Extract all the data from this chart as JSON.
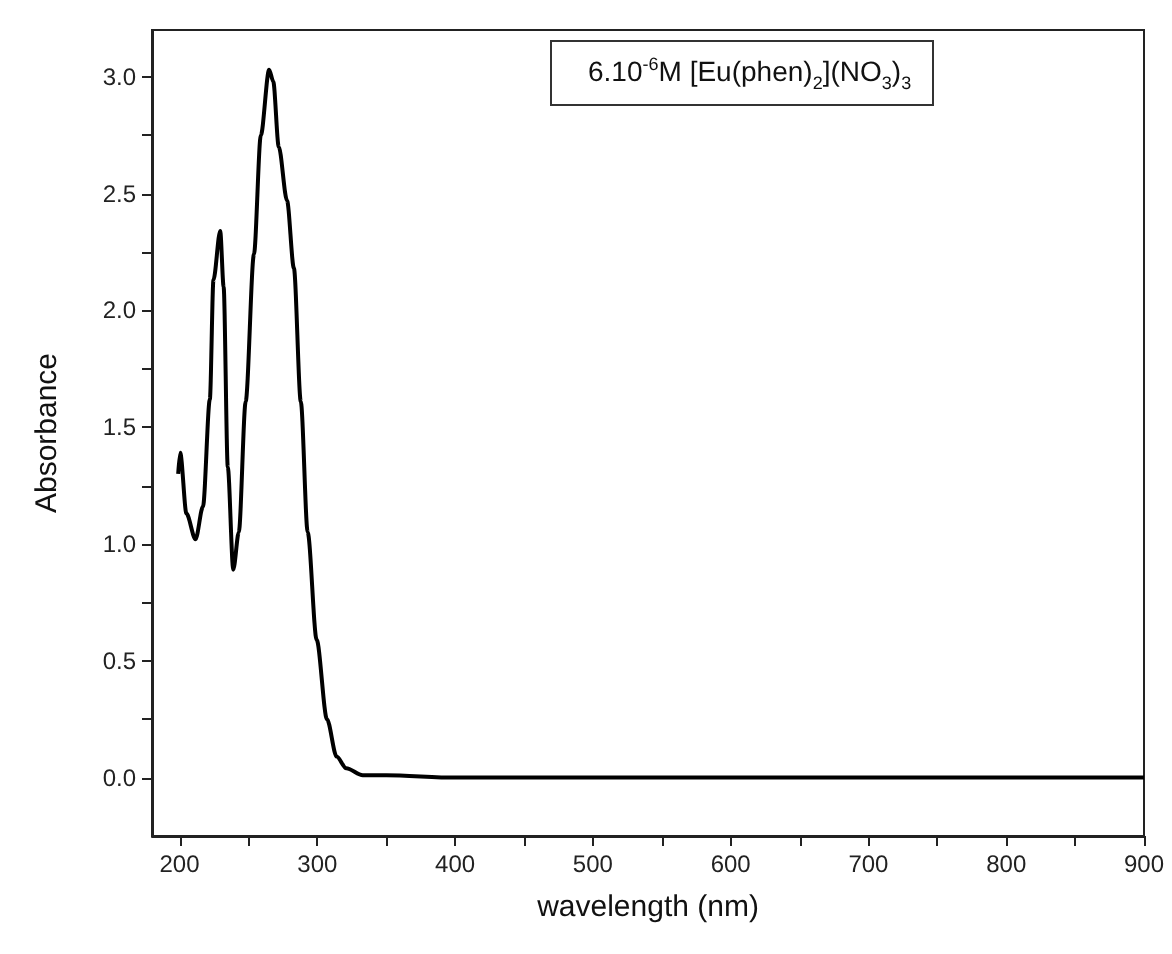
{
  "chart_data": {
    "type": "line",
    "xlabel": "wavelength (nm)",
    "ylabel": "Absorbance",
    "annotations": [
      "6.10$^{-6}$M [Eu(phen)$_{2}$](NO$_{3}$)$_{3}$"
    ],
    "xlim": [
      180,
      900
    ],
    "ylim": [
      -0.25,
      3.2
    ],
    "xticks": [
      200,
      {
        "value": 250,
        "label": null
      },
      300,
      {
        "value": 350,
        "label": null
      },
      400,
      {
        "value": 450,
        "label": null
      },
      500,
      {
        "value": 550,
        "label": null
      },
      600,
      {
        "value": 650,
        "label": null
      },
      700,
      {
        "value": 750,
        "label": null
      },
      800,
      {
        "value": 850,
        "label": null
      },
      900
    ],
    "yticks": [
      {
        "value": 0,
        "label": "0.0"
      },
      {
        "value": 0.25,
        "label": null
      },
      {
        "value": 0.5,
        "label": "0.5"
      },
      {
        "value": 0.75,
        "label": null
      },
      {
        "value": 1,
        "label": "1.0"
      },
      {
        "value": 1.25,
        "label": null
      },
      {
        "value": 1.5,
        "label": "1.5"
      },
      {
        "value": 1.75,
        "label": null
      },
      {
        "value": 2,
        "label": "2.0"
      },
      {
        "value": 2.25,
        "label": null
      },
      {
        "value": 2.5,
        "label": "2.5"
      },
      {
        "value": 2.75,
        "label": null
      },
      {
        "value": 3,
        "label": "3.0"
      }
    ],
    "grid": false,
    "marker": "none",
    "line_style": "solid",
    "series": [
      {
        "color": "#000000",
        "x": [
          199,
          200.5,
          205,
          211.6,
          217,
          222,
          224.6,
          229.5,
          232,
          235,
          239,
          243,
          248,
          254,
          259,
          265,
          268,
          272,
          278,
          283,
          288,
          293,
          299.5,
          307,
          314,
          321,
          333,
          350,
          400,
          500,
          600,
          700,
          800,
          900
        ],
        "values": [
          1.3,
          1.39,
          1.13,
          1.02,
          1.16,
          1.62,
          2.13,
          2.34,
          2.1,
          1.33,
          0.89,
          1.05,
          1.61,
          2.24,
          2.75,
          3.03,
          2.98,
          2.7,
          2.47,
          2.18,
          1.61,
          1.05,
          0.59,
          0.25,
          0.09,
          0.04,
          0.01,
          0.01,
          0.0,
          0.0,
          0.0,
          0.0,
          0.0,
          0.0
        ]
      }
    ]
  }
}
